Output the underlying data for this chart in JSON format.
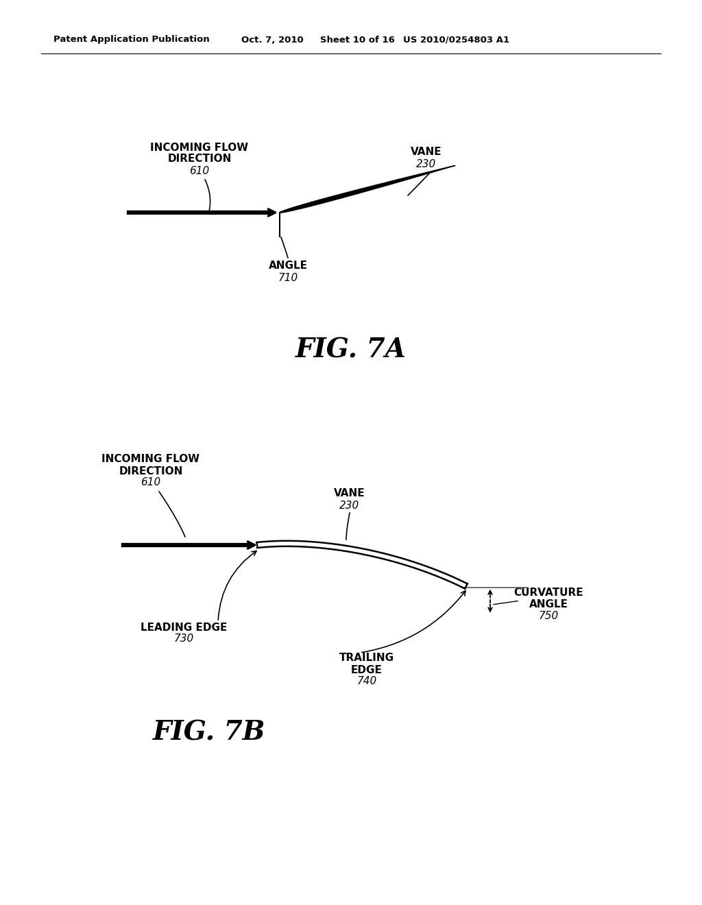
{
  "background_color": "#ffffff",
  "header_text": "Patent Application Publication",
  "header_date": "Oct. 7, 2010",
  "header_sheet": "Sheet 10 of 16",
  "header_patent": "US 2010/0254803 A1",
  "fig7a_title": "FIG. 7A",
  "fig7b_title": "FIG. 7B"
}
